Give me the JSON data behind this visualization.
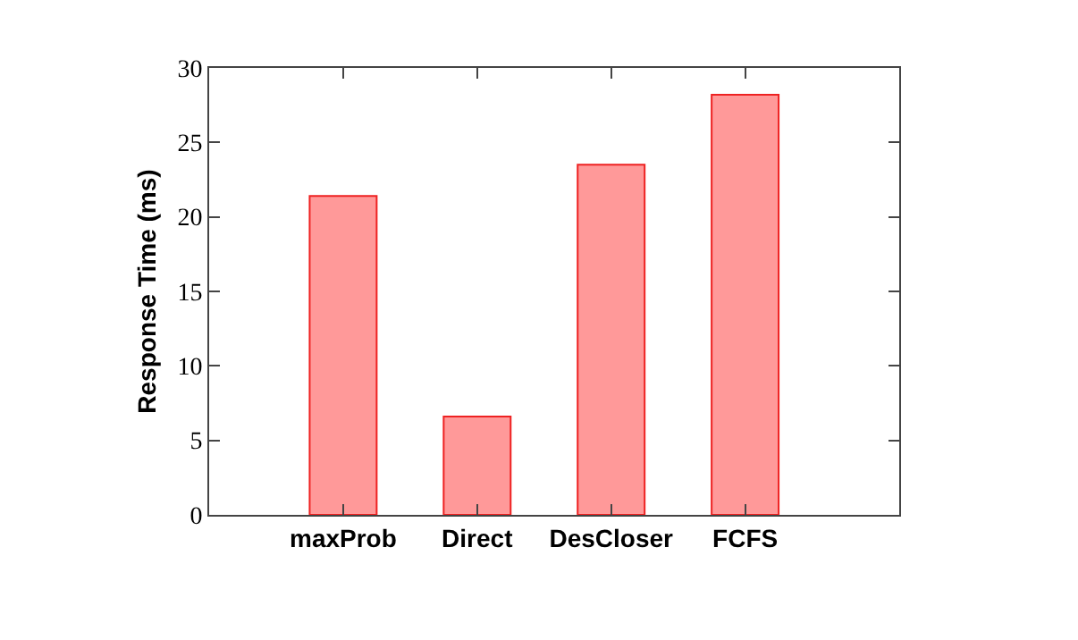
{
  "chart_data": {
    "type": "bar",
    "ylabel": "Response Time (ms)",
    "categories": [
      "maxProb",
      "Direct",
      "DesCloser",
      "FCFS"
    ],
    "series": [
      {
        "color": "#ff9999",
        "values": [
          21.4,
          6.6,
          23.5,
          28.2
        ]
      }
    ],
    "ylim": [
      0,
      30
    ],
    "yticks": [
      0,
      5,
      10,
      15,
      20,
      25,
      30
    ]
  }
}
